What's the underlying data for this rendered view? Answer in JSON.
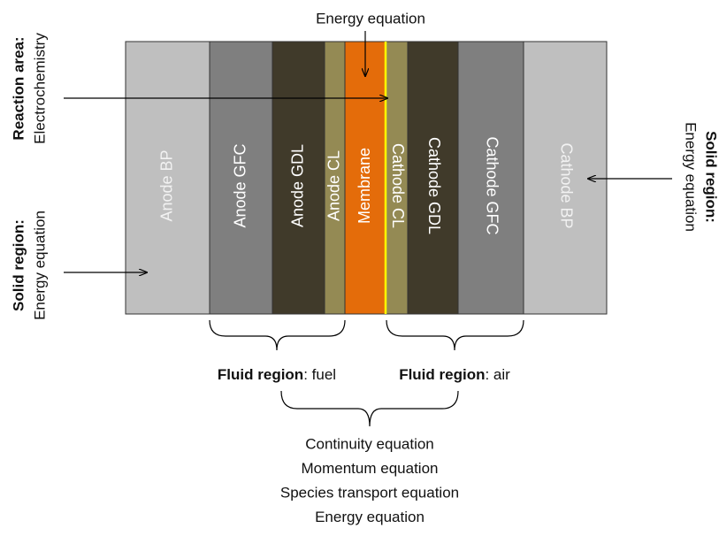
{
  "top_label": "Energy equation",
  "layers": [
    {
      "label": "Anode BP"
    },
    {
      "label": "Anode GFC"
    },
    {
      "label": "Anode GDL"
    },
    {
      "label": "Anode CL"
    },
    {
      "label": "Membrane"
    },
    {
      "label": "Cathode CL"
    },
    {
      "label": "Cathode GDL"
    },
    {
      "label": "Cathode GFC"
    },
    {
      "label": "Cathode BP"
    }
  ],
  "left_reaction": {
    "title": "Reaction area:",
    "text": "Electrochemistry"
  },
  "left_solid": {
    "title": "Solid region:",
    "text": "Energy equation"
  },
  "right_solid": {
    "title": "Solid region:",
    "text": "Energy equation"
  },
  "fluid_fuel": {
    "title": "Fluid region",
    "text": ": fuel"
  },
  "fluid_air": {
    "title": "Fluid region",
    "text": ": air"
  },
  "equations": [
    "Continuity equation",
    "Momentum equation",
    "Species transport equation",
    "Energy equation"
  ]
}
